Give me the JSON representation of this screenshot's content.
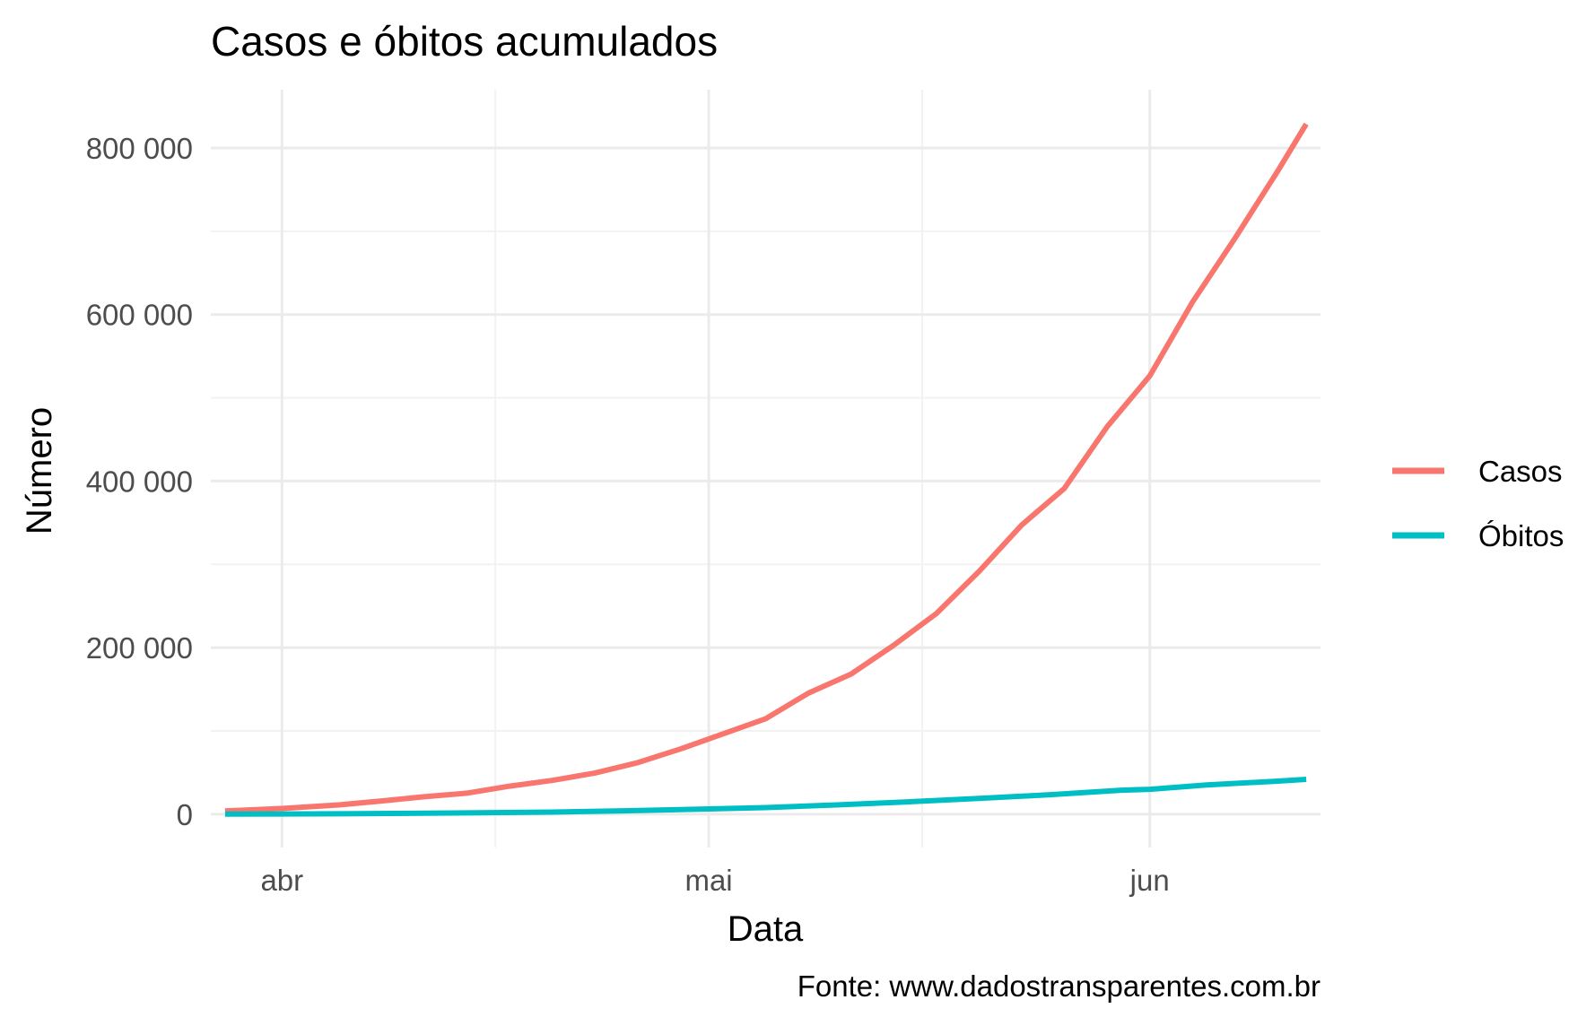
{
  "chart_data": {
    "type": "line",
    "title": "Casos e óbitos acumulados",
    "xlabel": "Data",
    "ylabel": "Número",
    "caption": "Fonte: www.dadostransparentes.com.br",
    "x_range": [
      "2020-03-27",
      "2020-06-13"
    ],
    "ylim": [
      -40000,
      870000
    ],
    "x_ticks": [
      {
        "date": "2020-04-01",
        "label": "abr"
      },
      {
        "date": "2020-05-01",
        "label": "mai"
      },
      {
        "date": "2020-06-01",
        "label": "jun"
      }
    ],
    "y_ticks": [
      {
        "value": 0,
        "label": "0"
      },
      {
        "value": 200000,
        "label": "200 000"
      },
      {
        "value": 400000,
        "label": "400 000"
      },
      {
        "value": 600000,
        "label": "600 000"
      },
      {
        "value": 800000,
        "label": "800 000"
      }
    ],
    "grid": true,
    "legend_position": "right",
    "series": [
      {
        "name": "Casos",
        "color": "#F8766D",
        "points": [
          [
            "2020-03-28",
            3900
          ],
          [
            "2020-04-01",
            6800
          ],
          [
            "2020-04-05",
            11100
          ],
          [
            "2020-04-08",
            15900
          ],
          [
            "2020-04-11",
            21000
          ],
          [
            "2020-04-14",
            25300
          ],
          [
            "2020-04-17",
            33700
          ],
          [
            "2020-04-20",
            40600
          ],
          [
            "2020-04-23",
            49500
          ],
          [
            "2020-04-26",
            61900
          ],
          [
            "2020-04-29",
            78200
          ],
          [
            "2020-05-02",
            96500
          ],
          [
            "2020-05-05",
            114700
          ],
          [
            "2020-05-08",
            145300
          ],
          [
            "2020-05-11",
            168300
          ],
          [
            "2020-05-14",
            202900
          ],
          [
            "2020-05-17",
            241000
          ],
          [
            "2020-05-20",
            291600
          ],
          [
            "2020-05-23",
            347400
          ],
          [
            "2020-05-26",
            391200
          ],
          [
            "2020-05-29",
            465200
          ],
          [
            "2020-06-01",
            526400
          ],
          [
            "2020-06-04",
            614900
          ],
          [
            "2020-06-07",
            691800
          ],
          [
            "2020-06-10",
            772400
          ],
          [
            "2020-06-12",
            828800
          ]
        ]
      },
      {
        "name": "Óbitos",
        "color": "#00BFC4",
        "points": [
          [
            "2020-03-28",
            114
          ],
          [
            "2020-04-01",
            240
          ],
          [
            "2020-04-05",
            486
          ],
          [
            "2020-04-10",
            1057
          ],
          [
            "2020-04-15",
            1736
          ],
          [
            "2020-04-20",
            2575
          ],
          [
            "2020-04-25",
            4045
          ],
          [
            "2020-04-30",
            5901
          ],
          [
            "2020-05-05",
            7921
          ],
          [
            "2020-05-10",
            11123
          ],
          [
            "2020-05-15",
            14817
          ],
          [
            "2020-05-20",
            18859
          ],
          [
            "2020-05-25",
            23473
          ],
          [
            "2020-05-30",
            28834
          ],
          [
            "2020-06-01",
            29937
          ],
          [
            "2020-06-05",
            35026
          ],
          [
            "2020-06-10",
            39680
          ],
          [
            "2020-06-12",
            41828
          ]
        ]
      }
    ]
  }
}
